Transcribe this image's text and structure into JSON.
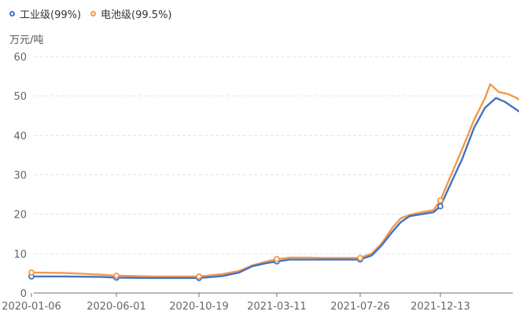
{
  "legend": [
    {
      "name": "工业级(99%)",
      "color": "#4472C4"
    },
    {
      "name": "电池级(99.5%)",
      "color": "#F29A4A"
    }
  ],
  "unit": "万元/吨",
  "chart_data": {
    "type": "line",
    "x_ticks": [
      "2020-01-06",
      "2020-06-01",
      "2020-10-19",
      "2021-03-11",
      "2021-07-26",
      "2021-12-13"
    ],
    "ylim": [
      0,
      60
    ],
    "yticks": [
      0,
      10,
      20,
      30,
      40,
      50,
      60
    ],
    "grid": true,
    "legend_position": "top-left",
    "series": [
      {
        "name": "工业级(99%)",
        "color": "#4472C4",
        "points": [
          [
            "2020-01-06",
            4.2
          ],
          [
            "2020-03-01",
            4.2
          ],
          [
            "2020-05-01",
            4.1
          ],
          [
            "2020-06-01",
            3.9
          ],
          [
            "2020-08-01",
            3.8
          ],
          [
            "2020-10-19",
            3.8
          ],
          [
            "2020-12-01",
            4.3
          ],
          [
            "2021-01-01",
            5.2
          ],
          [
            "2021-01-25",
            6.8
          ],
          [
            "2021-02-20",
            7.6
          ],
          [
            "2021-03-11",
            8.0
          ],
          [
            "2021-04-01",
            8.5
          ],
          [
            "2021-05-01",
            8.5
          ],
          [
            "2021-06-01",
            8.5
          ],
          [
            "2021-07-26",
            8.5
          ],
          [
            "2021-08-15",
            9.5
          ],
          [
            "2021-09-01",
            12.0
          ],
          [
            "2021-09-20",
            15.5
          ],
          [
            "2021-10-05",
            18.0
          ],
          [
            "2021-10-20",
            19.5
          ],
          [
            "2021-11-10",
            20.0
          ],
          [
            "2021-12-01",
            20.5
          ],
          [
            "2021-12-13",
            22.0
          ],
          [
            "2022-01-01",
            28.0
          ],
          [
            "2022-01-20",
            34.0
          ],
          [
            "2022-02-10",
            42.0
          ],
          [
            "2022-03-01",
            47.0
          ],
          [
            "2022-03-20",
            49.5
          ],
          [
            "2022-04-05",
            48.5
          ],
          [
            "2022-04-20",
            47.0
          ],
          [
            "2022-05-05",
            45.5
          ],
          [
            "2022-05-12",
            43.0
          ]
        ]
      },
      {
        "name": "电池级(99.5%)",
        "color": "#F29A4A",
        "points": [
          [
            "2020-01-06",
            5.2
          ],
          [
            "2020-03-01",
            5.1
          ],
          [
            "2020-05-01",
            4.7
          ],
          [
            "2020-06-01",
            4.4
          ],
          [
            "2020-08-01",
            4.2
          ],
          [
            "2020-10-19",
            4.2
          ],
          [
            "2020-12-01",
            4.8
          ],
          [
            "2021-01-01",
            5.6
          ],
          [
            "2021-01-25",
            7.0
          ],
          [
            "2021-02-20",
            8.0
          ],
          [
            "2021-03-11",
            8.6
          ],
          [
            "2021-04-01",
            9.0
          ],
          [
            "2021-05-01",
            9.0
          ],
          [
            "2021-06-01",
            8.9
          ],
          [
            "2021-07-26",
            8.9
          ],
          [
            "2021-08-15",
            10.0
          ],
          [
            "2021-09-01",
            12.5
          ],
          [
            "2021-09-20",
            16.5
          ],
          [
            "2021-10-05",
            19.0
          ],
          [
            "2021-10-20",
            19.8
          ],
          [
            "2021-11-10",
            20.5
          ],
          [
            "2021-12-01",
            21.0
          ],
          [
            "2021-12-13",
            23.5
          ],
          [
            "2022-01-01",
            30.0
          ],
          [
            "2022-01-20",
            36.5
          ],
          [
            "2022-02-10",
            44.0
          ],
          [
            "2022-03-01",
            49.5
          ],
          [
            "2022-03-10",
            53.0
          ],
          [
            "2022-03-25",
            51.0
          ],
          [
            "2022-04-10",
            50.5
          ],
          [
            "2022-04-25",
            49.5
          ],
          [
            "2022-05-05",
            48.5
          ],
          [
            "2022-05-12",
            48.0
          ]
        ]
      }
    ],
    "markers": {
      "工业级(99%)": [
        "2020-01-06",
        "2020-06-01",
        "2020-10-19",
        "2021-03-11",
        "2021-07-26",
        "2021-12-13"
      ],
      "电池级(99.5%)": [
        "2020-01-06",
        "2020-06-01",
        "2020-10-19",
        "2021-03-11",
        "2021-07-26",
        "2021-12-13"
      ]
    }
  }
}
